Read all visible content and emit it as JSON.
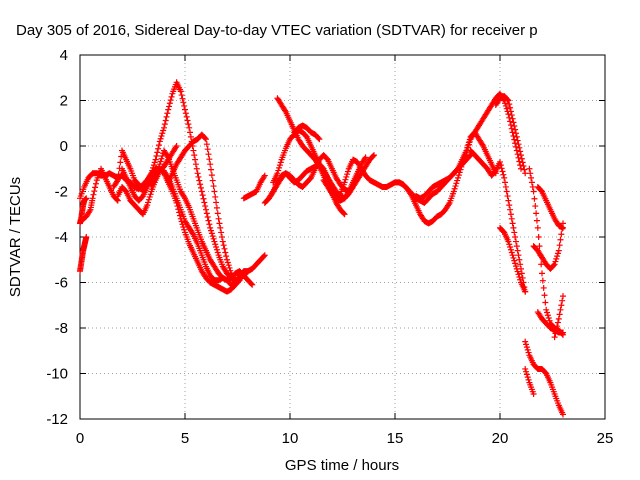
{
  "chart_data": {
    "type": "scatter",
    "title": "Day 305 of 2016, Sidereal Day-to-day VTEC variation (SDTVAR) for receiver p",
    "xlabel": "GPS time / hours",
    "ylabel": "SDTVAR / TECUs",
    "xlim": [
      0,
      25
    ],
    "ylim": [
      -12,
      4
    ],
    "xticks": [
      0,
      5,
      10,
      15,
      20,
      25
    ],
    "yticks": [
      -12,
      -10,
      -8,
      -6,
      -4,
      -2,
      0,
      2,
      4
    ],
    "grid": true,
    "marker": "plus",
    "color": "#ff0000",
    "traces": [
      {
        "x": [
          0,
          0.05,
          0.1,
          0.15,
          0.2,
          0.25,
          0.3
        ],
        "y": [
          -5.5,
          -5.2,
          -4.9,
          -4.6,
          -4.4,
          -4.2,
          -4.0
        ]
      },
      {
        "x": [
          0,
          0.05,
          0.1,
          0.15,
          0.2,
          0.3
        ],
        "y": [
          -3.4,
          -3.2,
          -2.9,
          -2.6,
          -2.4,
          -2.3
        ]
      },
      {
        "x": [
          0.05,
          0.3,
          0.5,
          0.6,
          0.8,
          1,
          1.2,
          1.4,
          1.6,
          1.8
        ],
        "y": [
          -3.3,
          -3.1,
          -2.8,
          -2.3,
          -1.5,
          -1.0,
          -1.4,
          -1.8,
          -2.2,
          -2.4
        ]
      },
      {
        "x": [
          0,
          0.2,
          0.4,
          0.6,
          0.8,
          1,
          1.2,
          1.4,
          1.6,
          1.8,
          2,
          2.2,
          2.4,
          2.6,
          2.8,
          3,
          3.2,
          3.4,
          3.6,
          3.8,
          4,
          4.2,
          4.4,
          4.6,
          4.8,
          5,
          5.2,
          5.4,
          5.6,
          5.8,
          6,
          6.2,
          6.4,
          6.6,
          6.8,
          7,
          7.2,
          7.4,
          7.6,
          7.8,
          8,
          8.2,
          8.4,
          8.6,
          8.8
        ],
        "y": [
          -2.3,
          -1.8,
          -1.4,
          -1.2,
          -1.2,
          -1.3,
          -1.3,
          -1.2,
          -1.3,
          -1.4,
          -1.3,
          -1.5,
          -1.6,
          -1.8,
          -1.9,
          -1.7,
          -1.5,
          -1.2,
          -1.0,
          -1.0,
          -1.1,
          -1.4,
          -1.8,
          -2.3,
          -2.8,
          -3.3,
          -3.6,
          -3.9,
          -4.3,
          -4.8,
          -5.3,
          -5.7,
          -5.9,
          -5.9,
          -5.8,
          -5.9,
          -6.1,
          -6.0,
          -5.7,
          -5.5,
          -5.5,
          -5.4,
          -5.2,
          -5.0,
          -4.8
        ]
      },
      {
        "x": [
          2,
          2.2,
          2.4,
          2.6,
          2.8,
          3,
          3.2,
          3.4,
          3.6,
          3.8,
          4,
          4.2,
          4.4,
          4.6,
          4.8,
          5,
          5.2,
          5.4,
          5.6,
          5.8,
          6,
          6.2,
          6.4,
          6.6,
          6.8,
          7,
          7.2,
          7.4,
          7.6
        ],
        "y": [
          -1.0,
          -1.4,
          -1.8,
          -2.2,
          -2.4,
          -2.2,
          -1.8,
          -1.5,
          -1.2,
          -1.0,
          -1.2,
          -1.6,
          -2.0,
          -2.5,
          -3.2,
          -3.8,
          -4.3,
          -4.7,
          -5.1,
          -5.5,
          -5.8,
          -6.0,
          -6.1,
          -6.2,
          -6.3,
          -6.4,
          -6.3,
          -6.1,
          -5.9
        ]
      },
      {
        "x": [
          1.6,
          1.8,
          2,
          2.2,
          2.4,
          2.6,
          2.8,
          3,
          3.2,
          3.4,
          3.6,
          3.8,
          4,
          4.2,
          4.4,
          4.6,
          4.8,
          5,
          5.2,
          5.4,
          5.6,
          5.8,
          6,
          6.2,
          6.4,
          6.6,
          6.8,
          7,
          7.2,
          7.4,
          7.6,
          7.8,
          8
        ],
        "y": [
          -1.8,
          -1.5,
          -0.2,
          -0.6,
          -1.0,
          -1.5,
          -1.7,
          -2.0,
          -1.6,
          -1.2,
          -0.6,
          0.2,
          0.8,
          1.6,
          2.3,
          2.8,
          2.4,
          1.6,
          0.8,
          -0.2,
          -1.2,
          -2.0,
          -2.8,
          -3.6,
          -4.2,
          -4.8,
          -5.3,
          -5.6,
          -5.8,
          -5.9,
          -5.8,
          -5.7,
          -5.5
        ]
      },
      {
        "x": [
          3.4,
          3.6,
          3.8,
          4,
          4.2,
          4.4,
          4.6,
          4.8,
          5,
          5.2,
          5.4,
          5.6,
          5.8,
          6,
          6.2,
          6.4,
          6.6,
          6.8,
          7,
          7.2,
          7.4,
          7.6,
          7.8,
          8,
          8.2
        ],
        "y": [
          -1.8,
          -1.4,
          -0.8,
          -0.2,
          -0.5,
          -1.0,
          -1.5,
          -2.0,
          -2.3,
          -2.7,
          -3.2,
          -3.7,
          -4.2,
          -4.6,
          -5.0,
          -5.3,
          -5.6,
          -5.8,
          -5.9,
          -5.8,
          -5.6,
          -5.5,
          -5.7,
          -5.9,
          -6.1
        ]
      },
      {
        "x": [
          4.2,
          4.4,
          4.6,
          4.8,
          5,
          5.2,
          5.4,
          5.6,
          5.8,
          6,
          6.2,
          6.4,
          6.6,
          6.8,
          7,
          7.2,
          7.4
        ],
        "y": [
          -1.6,
          -1.2,
          -0.8,
          -0.5,
          -0.2,
          0.0,
          0.2,
          0.3,
          0.5,
          0.3,
          -0.8,
          -2.0,
          -3.2,
          -4.2,
          -5.0,
          -5.6,
          -6.0
        ]
      },
      {
        "x": [
          1.8,
          2,
          2.2,
          2.4,
          2.6,
          2.8,
          3,
          3.2,
          3.4,
          3.6,
          3.8,
          4,
          4.2,
          4.4,
          4.6
        ],
        "y": [
          -2.2,
          -1.8,
          -2.0,
          -2.4,
          -2.6,
          -2.8,
          -3.0,
          -2.6,
          -2.0,
          -1.5,
          -1.1,
          -0.9,
          -0.6,
          -0.3,
          0.0
        ]
      },
      {
        "x": [
          7.8,
          8,
          8.2,
          8.4,
          8.6,
          8.8
        ],
        "y": [
          -2.3,
          -2.2,
          -2.1,
          -2.0,
          -1.6,
          -1.3
        ]
      },
      {
        "x": [
          9,
          9.2,
          9.4,
          9.6,
          9.8,
          10,
          10.2,
          10.4,
          10.6,
          10.8,
          11,
          11.2,
          11.4,
          11.6,
          11.8,
          12,
          12.2,
          12.4,
          12.6,
          12.8,
          13,
          13.2,
          13.4,
          13.6,
          13.8,
          14,
          14.2,
          14.4,
          14.6,
          14.8,
          15,
          15.2,
          15.4,
          15.6,
          15.8,
          16,
          16.2,
          16.4,
          16.6,
          16.8,
          17,
          17.2,
          17.4,
          17.6,
          17.8,
          18,
          18.2,
          18.4,
          18.6
        ],
        "y": [
          -2.3,
          -2.0,
          -1.6,
          -1.3,
          -1.2,
          -1.4,
          -1.6,
          -1.5,
          -1.3,
          -1.1,
          -1.0,
          -0.9,
          -0.8,
          -1.0,
          -1.4,
          -1.9,
          -2.3,
          -2.1,
          -1.6,
          -1.0,
          -0.6,
          -0.7,
          -1.0,
          -1.3,
          -1.5,
          -1.6,
          -1.7,
          -1.8,
          -1.8,
          -1.7,
          -1.6,
          -1.6,
          -1.7,
          -1.9,
          -2.1,
          -2.3,
          -2.4,
          -2.5,
          -2.3,
          -2.1,
          -2.0,
          -1.8,
          -1.6,
          -1.4,
          -1.2,
          -1.0,
          -0.8,
          -0.6,
          -0.4
        ]
      },
      {
        "x": [
          9.2,
          9.4,
          9.6,
          9.8,
          10,
          10.2,
          10.4,
          10.6,
          10.8,
          11,
          11.2,
          11.4,
          11.6,
          11.8,
          12,
          12.2,
          12.4,
          12.6,
          12.8,
          13,
          13.2,
          13.4,
          13.6,
          13.8,
          14
        ],
        "y": [
          -1.6,
          -1.2,
          -0.6,
          -0.1,
          0.3,
          0.5,
          0.7,
          0.6,
          0.4,
          0.0,
          -0.4,
          -0.8,
          -1.1,
          -1.4,
          -1.7,
          -2.0,
          -2.2,
          -2.3,
          -2.1,
          -1.8,
          -1.5,
          -1.2,
          -0.9,
          -0.6,
          -0.4
        ]
      },
      {
        "x": [
          9.4,
          9.6,
          9.8,
          10,
          10.2,
          10.4,
          10.6,
          10.8,
          11,
          11.2,
          11.4,
          11.6,
          11.8,
          12,
          12.2,
          12.4,
          12.6
        ],
        "y": [
          2.1,
          1.8,
          1.5,
          1.1,
          0.7,
          0.3,
          0.0,
          -0.2,
          -0.4,
          -0.6,
          -0.9,
          -1.3,
          -1.7,
          -2.1,
          -2.5,
          -2.8,
          -3.0
        ]
      },
      {
        "x": [
          8.8,
          9,
          9.2,
          9.4,
          9.6,
          9.8,
          10,
          10.2,
          10.4,
          10.6,
          10.8,
          11,
          11.2,
          11.4,
          11.6,
          11.8,
          12,
          12.2,
          12.4,
          12.6,
          12.8,
          13
        ],
        "y": [
          -2.5,
          -2.3,
          -2.0,
          -1.7,
          -1.4,
          -1.2,
          -1.3,
          -1.5,
          -1.7,
          -1.8,
          -1.6,
          -1.4,
          -1.0,
          -0.6,
          -0.4,
          -0.6,
          -1.0,
          -1.4,
          -1.7,
          -1.9,
          -2.0,
          -1.8
        ]
      },
      {
        "x": [
          10.2,
          10.4,
          10.6,
          10.8,
          11,
          11.2,
          11.4
        ],
        "y": [
          0.6,
          0.8,
          0.9,
          0.8,
          0.6,
          0.5,
          0.3
        ]
      },
      {
        "x": [
          11.6,
          11.8,
          12,
          12.2,
          12.4,
          12.6,
          12.8,
          13,
          13.2,
          13.4,
          13.6
        ],
        "y": [
          -1.5,
          -1.8,
          -2.1,
          -2.3,
          -2.4,
          -2.3,
          -2.0,
          -1.6,
          -1.2,
          -0.8,
          -0.5
        ]
      },
      {
        "x": [
          15.2,
          15.4,
          15.6,
          15.8,
          16,
          16.2,
          16.4,
          16.6,
          16.8,
          17,
          17.2,
          17.4,
          17.6,
          17.8,
          18,
          18.2,
          18.4,
          18.6,
          18.8,
          19,
          19.2,
          19.4,
          19.6,
          19.8,
          20,
          20.2,
          20.4,
          20.6,
          20.8,
          21
        ],
        "y": [
          -1.6,
          -1.7,
          -1.9,
          -2.2,
          -2.6,
          -3.0,
          -3.3,
          -3.4,
          -3.3,
          -3.1,
          -3.0,
          -2.8,
          -2.5,
          -2.0,
          -1.4,
          -0.8,
          -0.3,
          0.3,
          0.6,
          0.9,
          1.2,
          1.5,
          1.8,
          2.1,
          2.3,
          2.0,
          1.4,
          0.6,
          -0.2,
          -1.0
        ]
      },
      {
        "x": [
          16,
          16.2,
          16.4,
          16.6,
          16.8,
          17,
          17.2,
          17.4,
          17.6,
          17.8,
          18,
          18.2,
          18.4,
          18.6,
          18.8,
          19,
          19.2,
          19.4,
          19.6,
          19.8
        ],
        "y": [
          -2.2,
          -2.3,
          -2.2,
          -2.0,
          -1.8,
          -1.7,
          -1.6,
          -1.5,
          -1.4,
          -1.2,
          -1.0,
          -0.6,
          -0.2,
          0.4,
          0.6,
          0.3,
          0.0,
          -0.4,
          -0.8,
          -1.2
        ]
      },
      {
        "x": [
          18.6,
          18.8,
          19,
          19.2,
          19.4,
          19.6,
          19.8,
          20,
          20.2,
          20.4,
          20.6,
          20.8,
          21,
          21.2
        ],
        "y": [
          -0.2,
          -0.4,
          -0.6,
          -0.8,
          -1.0,
          -1.3,
          -1.1,
          -0.7,
          -1.4,
          -2.4,
          -3.4,
          -4.4,
          -5.4,
          -6.4
        ]
      },
      {
        "x": [
          19.8,
          20,
          20.2,
          20.4,
          20.6,
          20.8,
          21,
          21.2
        ],
        "y": [
          1.8,
          2.1,
          2.2,
          2.0,
          1.2,
          0.4,
          -0.4,
          -1.2
        ]
      },
      {
        "x": [
          20,
          20.2,
          20.4,
          20.6,
          20.8,
          21,
          21.2
        ],
        "y": [
          -3.6,
          -3.8,
          -4.2,
          -4.8,
          -5.4,
          -6.0,
          -6.4
        ]
      },
      {
        "x": [
          21.8,
          22,
          22.2,
          22.4,
          22.6,
          22.8,
          23
        ],
        "y": [
          -1.8,
          -2.0,
          -2.4,
          -2.8,
          -3.2,
          -3.5,
          -3.6
        ]
      },
      {
        "x": [
          21.6,
          21.8,
          22,
          22.2,
          22.4,
          22.6,
          22.8,
          23
        ],
        "y": [
          -4.4,
          -4.6,
          -4.9,
          -5.2,
          -5.4,
          -5.2,
          -4.6,
          -3.4
        ]
      },
      {
        "x": [
          21.4,
          21.6,
          21.8,
          22,
          22.2,
          22.4,
          22.6,
          22.8,
          23
        ],
        "y": [
          -1.0,
          -2.0,
          -3.6,
          -5.6,
          -7.2,
          -7.8,
          -8.0,
          -8.1,
          -8.3
        ]
      },
      {
        "x": [
          21.8,
          22,
          22.2,
          22.4,
          22.6,
          22.8,
          23
        ],
        "y": [
          -7.3,
          -7.6,
          -7.8,
          -8.0,
          -8.1,
          -8.2,
          -8.2
        ]
      },
      {
        "x": [
          22.6,
          22.8,
          23
        ],
        "y": [
          -8.4,
          -7.6,
          -6.6
        ]
      },
      {
        "x": [
          21.2,
          21.4,
          21.6,
          21.8,
          22,
          22.2,
          22.4,
          22.6,
          22.8,
          23
        ],
        "y": [
          -8.6,
          -9.2,
          -9.6,
          -9.8,
          -9.8,
          -10.0,
          -10.4,
          -10.9,
          -11.4,
          -11.8
        ]
      },
      {
        "x": [
          21.2,
          21.4,
          21.6
        ],
        "y": [
          -9.8,
          -10.4,
          -10.9
        ]
      }
    ]
  }
}
